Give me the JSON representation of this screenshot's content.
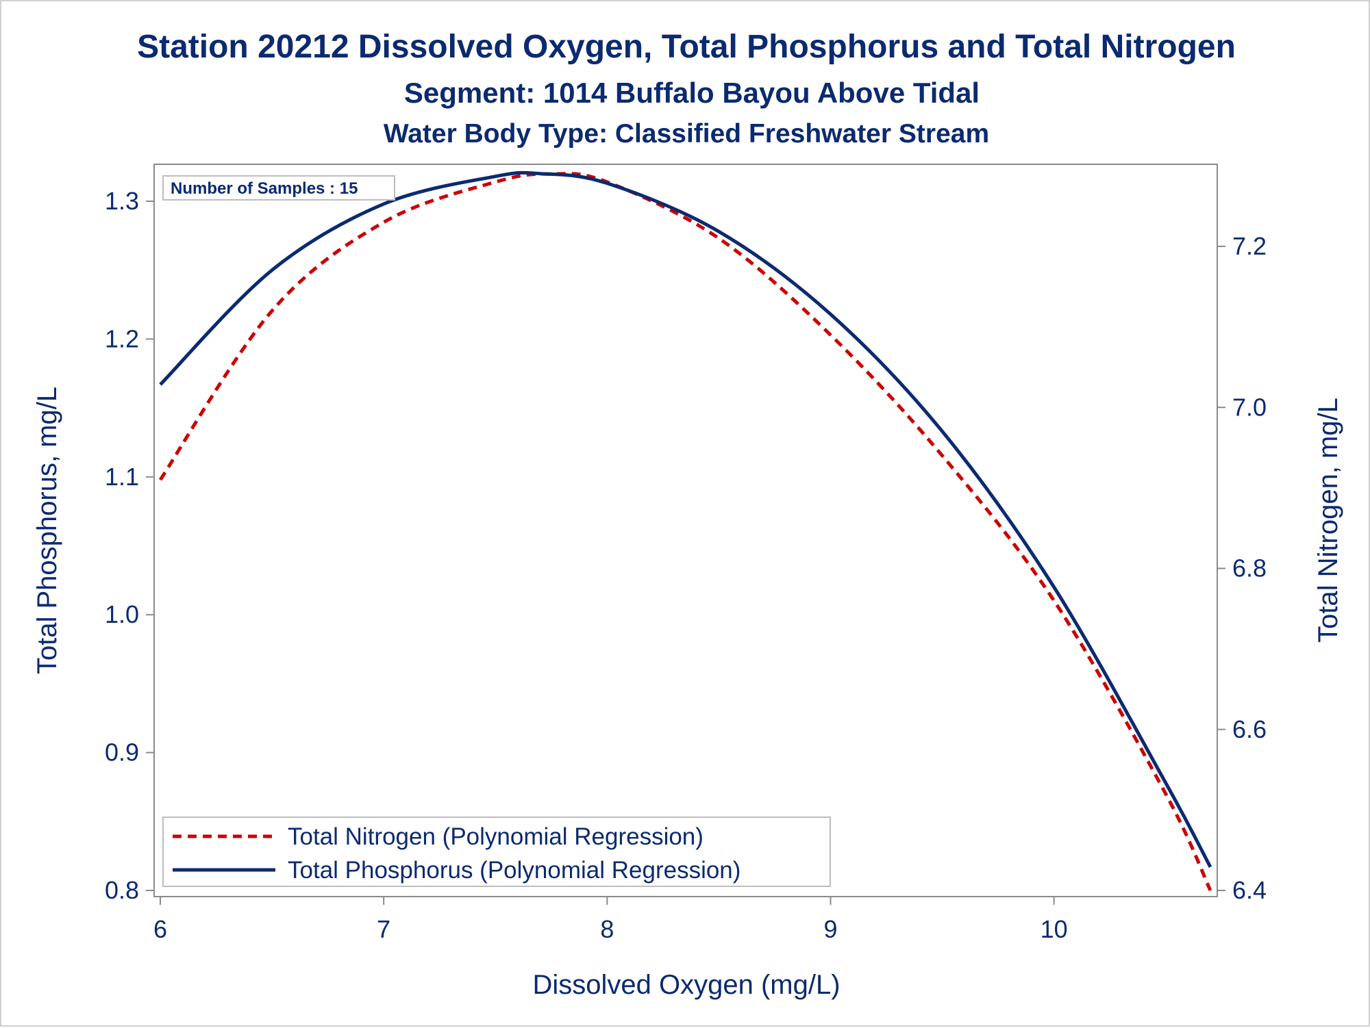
{
  "chart_data": {
    "type": "line",
    "title": "Station 20212  Dissolved Oxygen, Total Phosphorus and Total Nitrogen",
    "subtitle": "Segment: 1014  Buffalo Bayou Above Tidal",
    "subtitle2": "Water Body Type: Classified Freshwater Stream",
    "xlabel": "Dissolved Oxygen (mg/L)",
    "ylabel_left": "Total Phosphorus, mg/L",
    "ylabel_right": "Total Nitrogen, mg/L",
    "xlim": [
      6,
      10.7
    ],
    "ylim_left": [
      0.8,
      1.325
    ],
    "ylim_right": [
      6.4,
      7.3
    ],
    "x_ticks": [
      "6",
      "7",
      "8",
      "9",
      "10"
    ],
    "y_left_ticks": [
      "0.8",
      "0.9",
      "1.0",
      "1.1",
      "1.2",
      "1.3"
    ],
    "y_right_ticks": [
      "6.4",
      "6.6",
      "6.8",
      "7.0",
      "7.2"
    ],
    "sample_box": "Number of Samples : 15",
    "legend_position": "bottom-left",
    "grid": false,
    "series": [
      {
        "name": "Total Nitrogen (Polynomial Regression)",
        "axis": "right",
        "style": "dashed",
        "color": "#cc0000",
        "x": [
          6.0,
          6.5,
          7.0,
          7.5,
          7.75,
          8.0,
          8.5,
          9.0,
          9.5,
          10.0,
          10.5,
          10.7
        ],
        "y": [
          6.91,
          7.12,
          7.23,
          7.28,
          7.29,
          7.28,
          7.21,
          7.09,
          6.94,
          6.76,
          6.52,
          6.4
        ]
      },
      {
        "name": "Total Phosphorus (Polynomial Regression)",
        "axis": "left",
        "style": "solid",
        "color": "#0b2a70",
        "x": [
          6.0,
          6.5,
          7.0,
          7.5,
          7.7,
          8.0,
          8.5,
          9.0,
          9.5,
          10.0,
          10.5,
          10.7
        ],
        "y": [
          1.167,
          1.25,
          1.298,
          1.318,
          1.32,
          1.313,
          1.278,
          1.218,
          1.133,
          1.02,
          0.878,
          0.817
        ]
      }
    ]
  }
}
